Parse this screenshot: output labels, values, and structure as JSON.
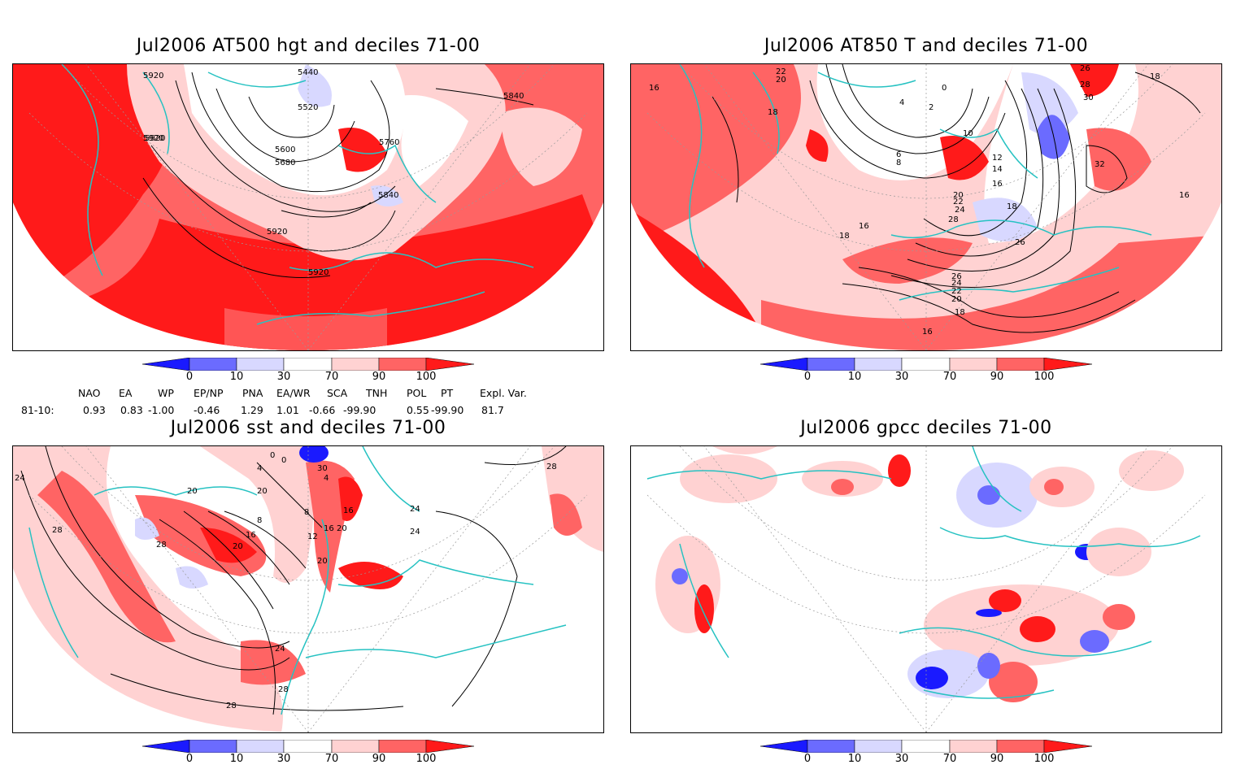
{
  "panels": [
    {
      "id": "p1",
      "title": "Jul2006 AT500 hgt and deciles 71-00",
      "contours": [
        "5920",
        "5440",
        "5920",
        "5520",
        "5840",
        "5920",
        "5600",
        "5680",
        "5760",
        "5840",
        "5920",
        "5920"
      ]
    },
    {
      "id": "p2",
      "title": "Jul2006 AT850 T and deciles 71-00",
      "contours": [
        "16",
        "22",
        "20",
        "18",
        "4",
        "2",
        "0",
        "26",
        "28",
        "30",
        "18",
        "10",
        "6",
        "8",
        "12",
        "14",
        "16",
        "32",
        "20",
        "22",
        "24",
        "28",
        "18",
        "16",
        "16",
        "18",
        "26",
        "26",
        "24",
        "22",
        "20",
        "18",
        "16"
      ]
    },
    {
      "id": "p3",
      "title": "Jul2006 sst and deciles 71-00",
      "contours": [
        "24",
        "20",
        "0",
        "0",
        "4",
        "30",
        "4",
        "20",
        "28",
        "28",
        "28",
        "8",
        "16",
        "20",
        "12",
        "8",
        "16",
        "24",
        "20",
        "16",
        "20",
        "24",
        "24",
        "28",
        "28"
      ]
    },
    {
      "id": "p4",
      "title": "Jul2006 gpcc deciles 71-00",
      "contours": []
    }
  ],
  "colorbar": {
    "ticks": [
      "0",
      "10",
      "30",
      "70",
      "90",
      "100"
    ],
    "colors": [
      "#1a1aff",
      "#6b6bff",
      "#d8d8ff",
      "#ffffff",
      "#ffd2d2",
      "#ff6464",
      "#ff1a1a"
    ]
  },
  "indices": {
    "headers": [
      "NAO",
      "EA",
      "WP",
      "EP/NP",
      "PNA",
      "EA/WR",
      "SCA",
      "TNH",
      "POL",
      "PT",
      "Expl. Var."
    ],
    "row_label": "81-10:",
    "values": [
      "0.93",
      "0.83",
      "-1.00",
      "-0.46",
      "1.29",
      "1.01",
      "-0.66",
      "-99.90",
      "0.55",
      "-99.90",
      "81.7"
    ]
  },
  "colors": {
    "coast": "#26c2c2",
    "strong_pos": "#ff1a1a",
    "mod_pos": "#ff6464",
    "weak_pos": "#ffd2d2",
    "weak_neg": "#d8d8ff",
    "mod_neg": "#6b6bff",
    "strong_neg": "#1a1aff"
  }
}
